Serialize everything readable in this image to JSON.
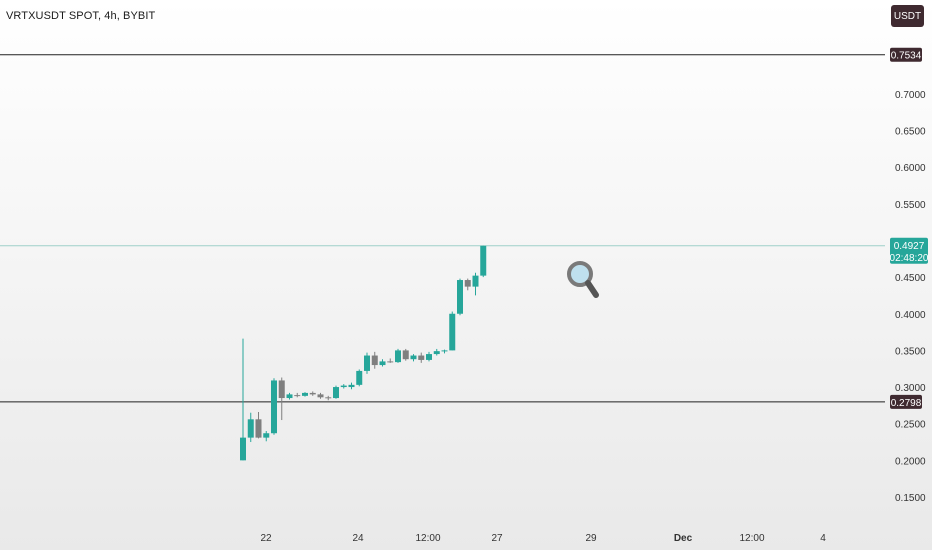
{
  "header": {
    "title": "VRTXUSDT SPOT, 4h, BYBIT",
    "currency_button": "USDT"
  },
  "colors": {
    "up": "#26a69a",
    "down": "#7f7f7f",
    "level_line": "#222222",
    "price_line": "#9ed0c9",
    "level_tag_bg": "#3f2a30",
    "price_tag_bg": "#26a69a"
  },
  "icons": [
    "magnifier-icon"
  ],
  "chart_data": {
    "type": "candlestick",
    "y_axis_ticks": [
      "0.7000",
      "0.6500",
      "0.6000",
      "0.5500",
      "0.4500",
      "0.4000",
      "0.3500",
      "0.3000",
      "0.2500",
      "0.2000",
      "0.1500"
    ],
    "x_axis_ticks": [
      "22",
      "24",
      "12:00",
      "27",
      "29",
      "Dec",
      "12:00",
      "4"
    ],
    "ylim": [
      0.112,
      0.8
    ],
    "horizontal_levels": [
      {
        "value": 0.7534,
        "label": "0.7534"
      },
      {
        "value": 0.2798,
        "label": "0.2798"
      }
    ],
    "last_price": {
      "value": 0.4927,
      "label": "0.4927",
      "countdown": "02:48:20"
    },
    "candles": [
      {
        "o": 0.2,
        "h": 0.366,
        "l": 0.2,
        "c": 0.231
      },
      {
        "o": 0.231,
        "h": 0.265,
        "l": 0.225,
        "c": 0.256
      },
      {
        "o": 0.256,
        "h": 0.266,
        "l": 0.23,
        "c": 0.231
      },
      {
        "o": 0.231,
        "h": 0.24,
        "l": 0.226,
        "c": 0.237
      },
      {
        "o": 0.237,
        "h": 0.312,
        "l": 0.235,
        "c": 0.309
      },
      {
        "o": 0.309,
        "h": 0.313,
        "l": 0.255,
        "c": 0.285
      },
      {
        "o": 0.285,
        "h": 0.292,
        "l": 0.283,
        "c": 0.29
      },
      {
        "o": 0.289,
        "h": 0.292,
        "l": 0.286,
        "c": 0.288
      },
      {
        "o": 0.288,
        "h": 0.293,
        "l": 0.287,
        "c": 0.292
      },
      {
        "o": 0.292,
        "h": 0.294,
        "l": 0.288,
        "c": 0.29
      },
      {
        "o": 0.29,
        "h": 0.292,
        "l": 0.284,
        "c": 0.286
      },
      {
        "o": 0.286,
        "h": 0.288,
        "l": 0.282,
        "c": 0.285
      },
      {
        "o": 0.285,
        "h": 0.302,
        "l": 0.284,
        "c": 0.3
      },
      {
        "o": 0.3,
        "h": 0.304,
        "l": 0.298,
        "c": 0.302
      },
      {
        "o": 0.3,
        "h": 0.306,
        "l": 0.297,
        "c": 0.303
      },
      {
        "o": 0.303,
        "h": 0.324,
        "l": 0.301,
        "c": 0.322
      },
      {
        "o": 0.322,
        "h": 0.347,
        "l": 0.318,
        "c": 0.343
      },
      {
        "o": 0.343,
        "h": 0.348,
        "l": 0.325,
        "c": 0.33
      },
      {
        "o": 0.33,
        "h": 0.338,
        "l": 0.328,
        "c": 0.335
      },
      {
        "o": 0.335,
        "h": 0.339,
        "l": 0.333,
        "c": 0.334
      },
      {
        "o": 0.334,
        "h": 0.352,
        "l": 0.333,
        "c": 0.35
      },
      {
        "o": 0.35,
        "h": 0.352,
        "l": 0.336,
        "c": 0.338
      },
      {
        "o": 0.338,
        "h": 0.345,
        "l": 0.335,
        "c": 0.343
      },
      {
        "o": 0.343,
        "h": 0.347,
        "l": 0.333,
        "c": 0.337
      },
      {
        "o": 0.337,
        "h": 0.348,
        "l": 0.335,
        "c": 0.345
      },
      {
        "o": 0.345,
        "h": 0.352,
        "l": 0.343,
        "c": 0.349
      },
      {
        "o": 0.349,
        "h": 0.351,
        "l": 0.346,
        "c": 0.35
      },
      {
        "o": 0.35,
        "h": 0.403,
        "l": 0.35,
        "c": 0.4
      },
      {
        "o": 0.4,
        "h": 0.448,
        "l": 0.398,
        "c": 0.446
      },
      {
        "o": 0.446,
        "h": 0.448,
        "l": 0.432,
        "c": 0.437
      },
      {
        "o": 0.437,
        "h": 0.456,
        "l": 0.425,
        "c": 0.452
      },
      {
        "o": 0.452,
        "h": 0.4927,
        "l": 0.45,
        "c": 0.4927
      }
    ]
  }
}
